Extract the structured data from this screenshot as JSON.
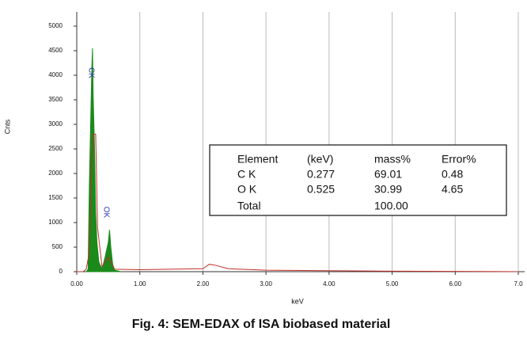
{
  "chart_data": {
    "type": "area",
    "caption": "Fig. 4: SEM-EDAX of ISA biobased material",
    "x_label": "keV",
    "y_label": "Cnts",
    "xlim": [
      0,
      7
    ],
    "ylim": [
      0,
      5290
    ],
    "xticks": [
      {
        "value": 0,
        "label": "0.00"
      },
      {
        "value": 1,
        "label": "1.00"
      },
      {
        "value": 2,
        "label": "2.00"
      },
      {
        "value": 3,
        "label": "3.00"
      },
      {
        "value": 4,
        "label": "4.00"
      },
      {
        "value": 5,
        "label": "5.00"
      },
      {
        "value": 6,
        "label": "6.00"
      },
      {
        "value": 7,
        "label": "7.0"
      }
    ],
    "yticks": [
      0,
      500,
      1000,
      1500,
      2000,
      2500,
      3000,
      3500,
      4000,
      4500,
      5000
    ],
    "grid": "x",
    "series": [
      {
        "color": "#1a8a1a",
        "fill": true,
        "x": [
          0.15,
          0.18,
          0.2,
          0.22,
          0.24,
          0.25,
          0.26,
          0.28,
          0.3,
          0.32,
          0.35,
          0.4,
          0.45,
          0.5,
          0.52,
          0.54,
          0.57,
          0.6,
          0.7
        ],
        "values": [
          0,
          50,
          1800,
          3000,
          4200,
          4550,
          3600,
          2600,
          1200,
          600,
          200,
          50,
          300,
          600,
          850,
          500,
          150,
          30,
          0
        ]
      },
      {
        "color": "#c0302a",
        "fill": false,
        "x": [
          0,
          0.1,
          0.15,
          0.2,
          0.25,
          0.3,
          0.33,
          0.4,
          0.5,
          0.6,
          1,
          1.5,
          2,
          2.1,
          2.2,
          2.4,
          3,
          5,
          7
        ],
        "values": [
          0,
          0,
          50,
          400,
          2800,
          2800,
          900,
          100,
          300,
          50,
          40,
          50,
          60,
          150,
          130,
          60,
          30,
          10,
          0
        ]
      }
    ],
    "annotations": [
      "CK",
      "OK"
    ],
    "table": {
      "header": [
        "Element",
        "(keV)",
        "mass%",
        "Error%"
      ],
      "rows": [
        [
          "C K",
          "0.277",
          "69.01",
          "0.48"
        ],
        [
          "O K",
          "0.525",
          "30.99",
          "4.65"
        ]
      ],
      "total": [
        "Total",
        "100.00"
      ]
    }
  }
}
